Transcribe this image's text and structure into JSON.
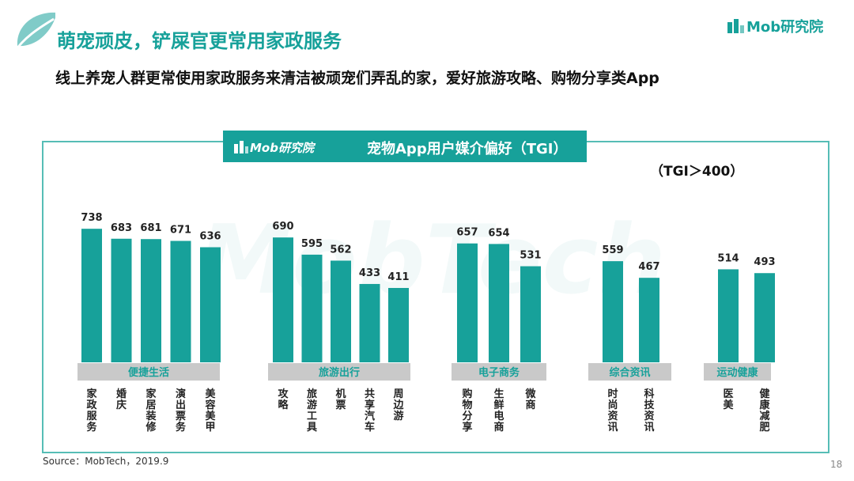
{
  "header": {
    "title": "萌宠顽皮，铲屎官更常用家政服务",
    "subtitle": "线上养宠人群更常使用家政服务来清洁被顽宠们弄乱的家，爱好旅游攻略、购物分享类App",
    "brand": "Mob研究院"
  },
  "chart_data": {
    "type": "bar",
    "title": "宠物App用户媒介偏好（TGI）",
    "brand": "Mob研究院",
    "note": "（TGI＞400）",
    "groups": [
      {
        "name": "便捷生活",
        "categories": [
          "家政服务",
          "婚庆",
          "家居装修",
          "演出票务",
          "美容美甲"
        ],
        "values": [
          738,
          683,
          681,
          671,
          636
        ]
      },
      {
        "name": "旅游出行",
        "categories": [
          "攻略",
          "旅游工具",
          "机票",
          "共享汽车",
          "周边游"
        ],
        "values": [
          690,
          595,
          562,
          433,
          411
        ]
      },
      {
        "name": "电子商务",
        "categories": [
          "购物分享",
          "生鲜电商",
          "微商"
        ],
        "values": [
          657,
          654,
          531
        ]
      },
      {
        "name": "综合资讯",
        "categories": [
          "时尚资讯",
          "科技资讯"
        ],
        "values": [
          559,
          467
        ]
      },
      {
        "name": "运动健康",
        "categories": [
          "医美",
          "健康减肥"
        ],
        "values": [
          514,
          493
        ]
      }
    ],
    "colors": {
      "bar": "#17a19a",
      "group_label_bg": "#c9c9c9",
      "group_label_text": "#17a19a"
    }
  },
  "footer": {
    "source": "Source：MobTech，2019.9",
    "page": "18"
  }
}
